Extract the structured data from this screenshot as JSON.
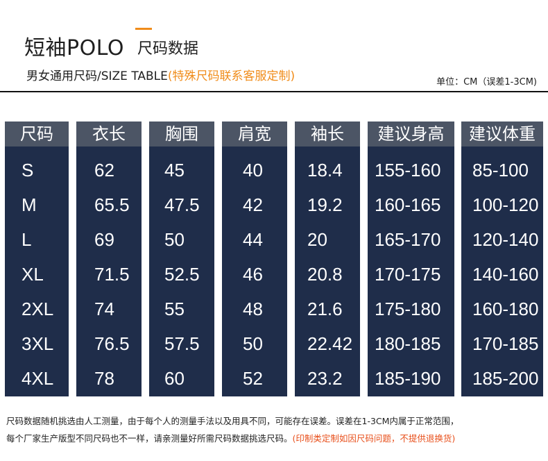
{
  "header": {
    "title_main": "短袖POLO",
    "title_sub": "尺码数据",
    "subtitle_main": "男女通用尺码/SIZE TABLE",
    "subtitle_highlight": "(特殊尺码联系客服定制)",
    "unit": "单位：CM（误差1-3CM)"
  },
  "table": {
    "columns": [
      "尺码",
      "衣长",
      "胸围",
      "肩宽",
      "袖长",
      "建议身高",
      "建议体重"
    ],
    "rows": [
      [
        "S",
        "62",
        "45",
        "40",
        "18.4",
        "155-160",
        "85-100"
      ],
      [
        "M",
        "65.5",
        "47.5",
        "42",
        "19.2",
        "160-165",
        "100-120"
      ],
      [
        "L",
        "69",
        "50",
        "44",
        "20",
        "165-170",
        "120-140"
      ],
      [
        "XL",
        "71.5",
        "52.5",
        "46",
        "20.8",
        "170-175",
        "140-160"
      ],
      [
        "2XL",
        "74",
        "55",
        "48",
        "21.6",
        "175-180",
        "160-180"
      ],
      [
        "3XL",
        "76.5",
        "57.5",
        "50",
        "22.42",
        "180-185",
        "170-185"
      ],
      [
        "4XL",
        "78",
        "60",
        "52",
        "23.2",
        "185-190",
        "185-200"
      ]
    ]
  },
  "footer": {
    "line1": "尺码数据随机挑选由人工测量，由于每个人的测量手法以及用具不同，可能存在误差。误差在1-3CM内属于正常范围，",
    "line2_main": "每个厂家生产版型不同尺码也不一样，请亲测量好所需尺码数据挑选尺码。",
    "line2_highlight": "(印制类定制如因尺码问题，不提供退换货)"
  },
  "colors": {
    "accent": "#f08c1a",
    "column_bg": "#1f2d4a",
    "header_cell_bg": "#4c5565",
    "footer_highlight": "#e8501c"
  }
}
